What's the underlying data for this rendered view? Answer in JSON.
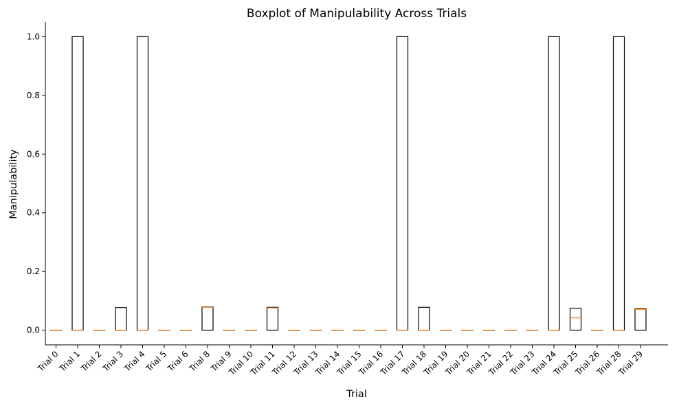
{
  "chart_data": {
    "type": "boxplot",
    "title": "Boxplot of Manipulability Across Trials",
    "xlabel": "Trial",
    "ylabel": "Manipulability",
    "ylim": [
      -0.05,
      1.05
    ],
    "yticks": [
      "0.0",
      "0.2",
      "0.4",
      "0.6",
      "0.8",
      "1.0"
    ],
    "categories": [
      "Trial 0",
      "Trial 1",
      "Trial 2",
      "Trial 3",
      "Trial 4",
      "Trial 5",
      "Trial 6",
      "Trial 8",
      "Trial 9",
      "Trial 10",
      "Trial 11",
      "Trial 12",
      "Trial 13",
      "Trial 14",
      "Trial 15",
      "Trial 16",
      "Trial 17",
      "Trial 18",
      "Trial 19",
      "Trial 20",
      "Trial 21",
      "Trial 22",
      "Trial 23",
      "Trial 24",
      "Trial 25",
      "Trial 26",
      "Trial 28",
      "Trial 29"
    ],
    "boxes": [
      {
        "q1": 0,
        "median": 0,
        "q3": 0
      },
      {
        "q1": 0,
        "median": 0,
        "q3": 1.0
      },
      {
        "q1": 0,
        "median": 0,
        "q3": 0
      },
      {
        "q1": 0,
        "median": 0,
        "q3": 0.077
      },
      {
        "q1": 0,
        "median": 0,
        "q3": 1.0
      },
      {
        "q1": 0,
        "median": 0,
        "q3": 0
      },
      {
        "q1": 0,
        "median": 0,
        "q3": 0
      },
      {
        "q1": 0,
        "median": 0.078,
        "q3": 0.079
      },
      {
        "q1": 0,
        "median": 0,
        "q3": 0
      },
      {
        "q1": 0,
        "median": 0,
        "q3": 0
      },
      {
        "q1": 0,
        "median": 0.076,
        "q3": 0.078
      },
      {
        "q1": 0,
        "median": 0,
        "q3": 0
      },
      {
        "q1": 0,
        "median": 0,
        "q3": 0
      },
      {
        "q1": 0,
        "median": 0,
        "q3": 0
      },
      {
        "q1": 0,
        "median": 0,
        "q3": 0
      },
      {
        "q1": 0,
        "median": 0,
        "q3": 0
      },
      {
        "q1": 0,
        "median": 0,
        "q3": 1.0
      },
      {
        "q1": 0,
        "median": 0,
        "q3": 0.078
      },
      {
        "q1": 0,
        "median": 0,
        "q3": 0
      },
      {
        "q1": 0,
        "median": 0,
        "q3": 0
      },
      {
        "q1": 0,
        "median": 0,
        "q3": 0
      },
      {
        "q1": 0,
        "median": 0,
        "q3": 0
      },
      {
        "q1": 0,
        "median": 0,
        "q3": 0
      },
      {
        "q1": 0,
        "median": 0,
        "q3": 1.0
      },
      {
        "q1": 0,
        "median": 0.042,
        "q3": 0.075
      },
      {
        "q1": 0,
        "median": 0,
        "q3": 0
      },
      {
        "q1": 0,
        "median": 0,
        "q3": 1.0
      },
      {
        "q1": 0,
        "median": 0.071,
        "q3": 0.073
      }
    ],
    "box_color": "#000000",
    "median_color": "#ff7f0e",
    "grid": false
  }
}
